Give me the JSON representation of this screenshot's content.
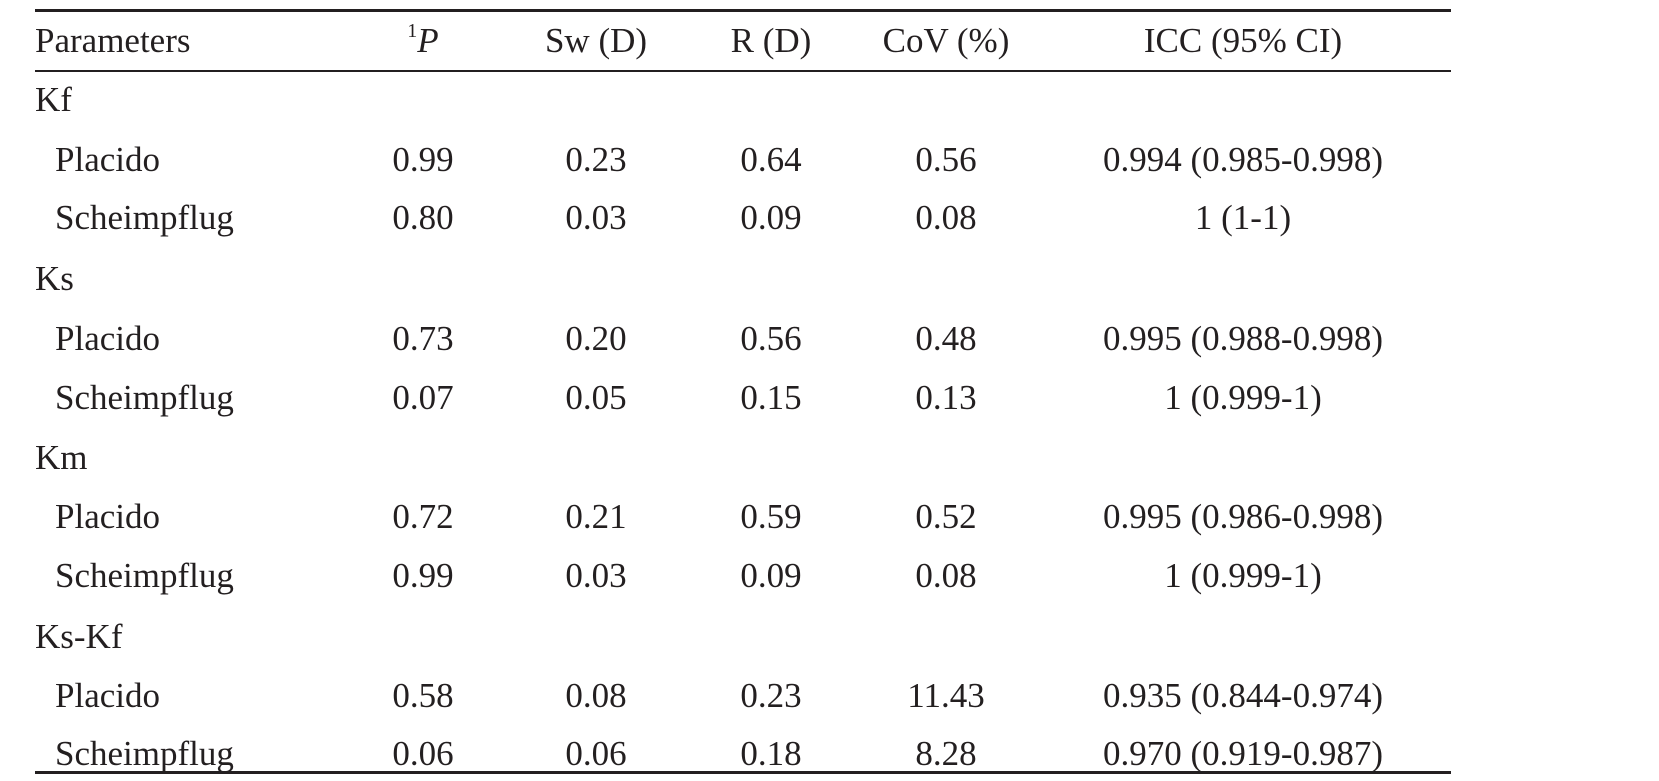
{
  "table": {
    "headers": {
      "parameters": "Parameters",
      "p_superscript": "1",
      "p_symbol": "P",
      "sw": "Sw (D)",
      "r": "R (D)",
      "cov": "CoV (%)",
      "icc": "ICC (95% CI)"
    },
    "groups": [
      {
        "label": "Kf",
        "rows": [
          {
            "method": "Placido",
            "p": "0.99",
            "sw": "0.23",
            "r": "0.64",
            "cov": "0.56",
            "icc": "0.994 (0.985-0.998)"
          },
          {
            "method": "Scheimpflug",
            "p": "0.80",
            "sw": "0.03",
            "r": "0.09",
            "cov": "0.08",
            "icc": "1 (1-1)"
          }
        ]
      },
      {
        "label": "Ks",
        "rows": [
          {
            "method": "Placido",
            "p": "0.73",
            "sw": "0.20",
            "r": "0.56",
            "cov": "0.48",
            "icc": "0.995 (0.988-0.998)"
          },
          {
            "method": "Scheimpflug",
            "p": "0.07",
            "sw": "0.05",
            "r": "0.15",
            "cov": "0.13",
            "icc": "1 (0.999-1)"
          }
        ]
      },
      {
        "label": "Km",
        "rows": [
          {
            "method": "Placido",
            "p": "0.72",
            "sw": "0.21",
            "r": "0.59",
            "cov": "0.52",
            "icc": "0.995 (0.986-0.998)"
          },
          {
            "method": "Scheimpflug",
            "p": "0.99",
            "sw": "0.03",
            "r": "0.09",
            "cov": "0.08",
            "icc": "1 (0.999-1)"
          }
        ]
      },
      {
        "label": "Ks-Kf",
        "rows": [
          {
            "method": "Placido",
            "p": "0.58",
            "sw": "0.08",
            "r": "0.23",
            "cov": "11.43",
            "icc": "0.935 (0.844-0.974)"
          },
          {
            "method": "Scheimpflug",
            "p": "0.06",
            "sw": "0.06",
            "r": "0.18",
            "cov": "8.28",
            "icc": "0.970 (0.919-0.987)"
          }
        ]
      }
    ]
  }
}
